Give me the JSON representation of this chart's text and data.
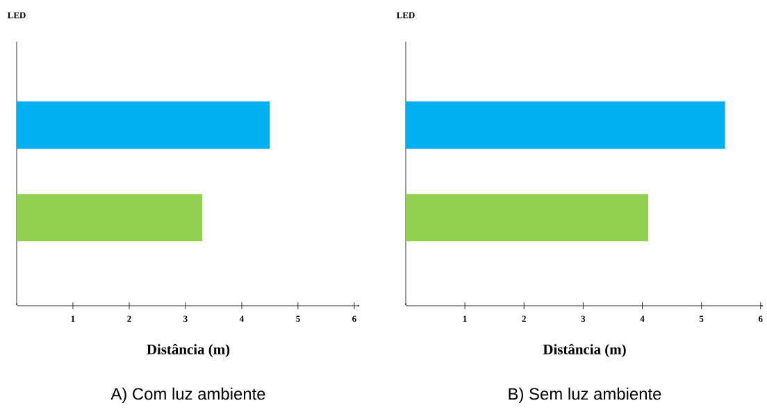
{
  "chart_data": [
    {
      "type": "bar",
      "orientation": "horizontal",
      "title": "A) Com luz ambiente",
      "xlabel": "Distância (m)",
      "ylabel": "LED",
      "categories": [
        null,
        null
      ],
      "values": [
        4.5,
        3.3
      ],
      "colors": [
        "#00b0f0",
        "#92d050"
      ],
      "xlim": [
        0,
        6.1
      ],
      "xticks": [
        1,
        2,
        3,
        4,
        5,
        6
      ]
    },
    {
      "type": "bar",
      "orientation": "horizontal",
      "title": "B) Sem luz ambiente",
      "xlabel": "Distância (m)",
      "ylabel": "LED",
      "categories": [
        null,
        null
      ],
      "values": [
        5.4,
        4.1
      ],
      "colors": [
        "#00b0f0",
        "#92d050"
      ],
      "xlim": [
        0,
        6.05
      ],
      "xticks": [
        1,
        2,
        3,
        4,
        5,
        6
      ]
    }
  ]
}
